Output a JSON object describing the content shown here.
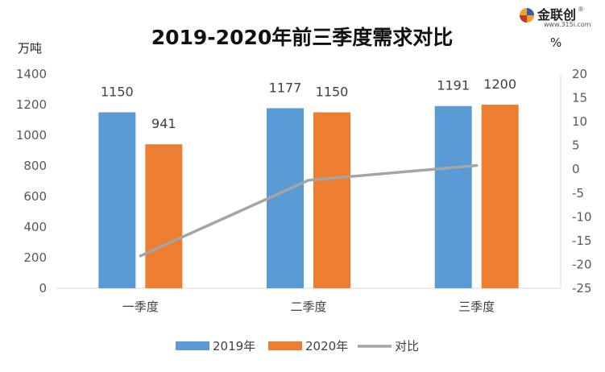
{
  "logo": {
    "name": "金联创",
    "sub": "www.315i.com",
    "reg": "®"
  },
  "chart_data": {
    "type": "bar",
    "title": "2019-2020年前三季度需求对比",
    "ylabel": "万吨",
    "y2label": "%",
    "categories": [
      "一季度",
      "二季度",
      "三季度"
    ],
    "ylim": [
      0,
      1400
    ],
    "yticks": [
      0,
      200,
      400,
      600,
      800,
      1000,
      1200,
      1400
    ],
    "y2lim": [
      -25,
      20
    ],
    "y2ticks": [
      20,
      15,
      10,
      5,
      0,
      -5,
      -10,
      -15,
      -20,
      -25
    ],
    "series": [
      {
        "name": "2019年",
        "type": "bar",
        "values": [
          1150,
          1177,
          1191
        ],
        "labels": [
          "1150",
          "1177",
          "1191"
        ],
        "color": "#5B9BD5"
      },
      {
        "name": "2020年",
        "type": "bar",
        "values": [
          941,
          1150,
          1200
        ],
        "labels": [
          "941",
          "1150",
          "1200"
        ],
        "color": "#ED7D31"
      },
      {
        "name": "对比",
        "type": "line",
        "axis": "right",
        "values": [
          -18.2,
          -2.3,
          0.8
        ],
        "color": "#A5A5A5"
      }
    ],
    "grid": false,
    "legend": "bottom"
  }
}
